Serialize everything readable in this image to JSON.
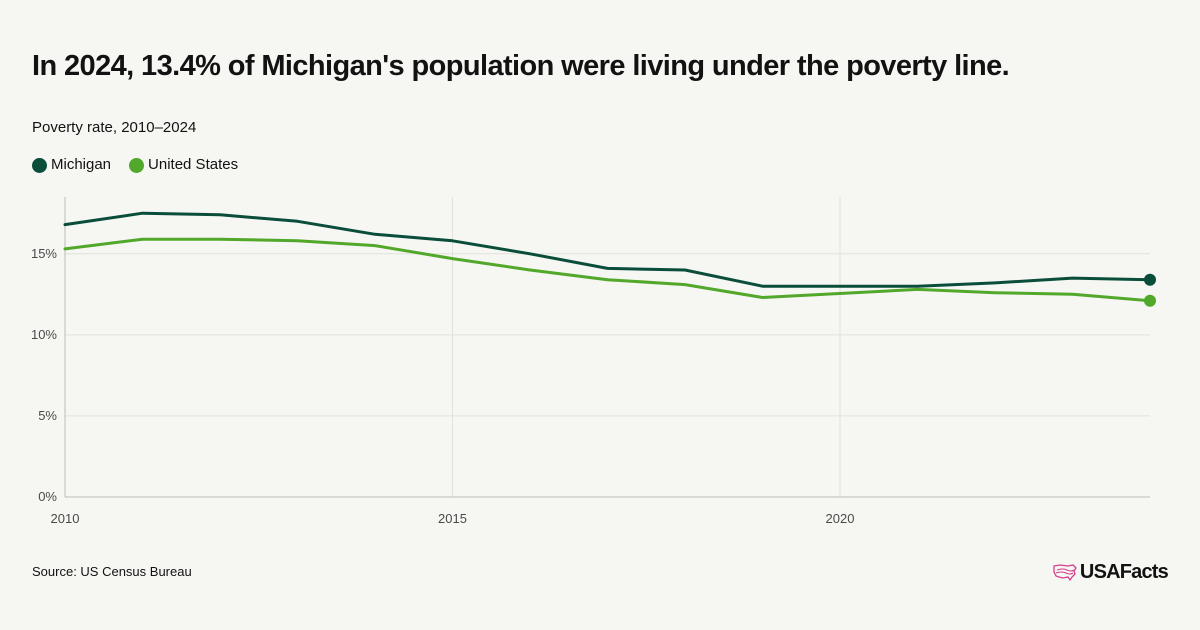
{
  "title": "In 2024, 13.4% of Michigan's population were living under the poverty line.",
  "subtitle": "Poverty rate, 2010–2024",
  "source": "Source: US Census Bureau",
  "brand": "USAFacts",
  "colors": {
    "michigan": "#0a4d3b",
    "united_states": "#52a82a",
    "grid": "#e2e2dc",
    "axis": "#bdbdb5",
    "tick_text": "#4a4a4a",
    "logo_icon": "#d43f8d"
  },
  "chart_data": {
    "type": "line",
    "title": "In 2024, 13.4% of Michigan's population were living under the poverty line.",
    "subtitle": "Poverty rate, 2010–2024",
    "xlabel": "",
    "ylabel": "",
    "x": [
      2010,
      2011,
      2012,
      2013,
      2014,
      2015,
      2016,
      2017,
      2018,
      2019,
      2021,
      2022,
      2023,
      2024
    ],
    "xlim": [
      2010,
      2024
    ],
    "ylim": [
      0,
      18.5
    ],
    "x_ticks": [
      {
        "value": 2010,
        "label": "2010"
      },
      {
        "value": 2015,
        "label": "2015"
      },
      {
        "value": 2020,
        "label": "2020"
      }
    ],
    "y_ticks": [
      {
        "value": 0,
        "label": "0%"
      },
      {
        "value": 5,
        "label": "5%"
      },
      {
        "value": 10,
        "label": "10%"
      },
      {
        "value": 15,
        "label": "15%"
      }
    ],
    "grid": true,
    "legend_position": "top-left",
    "series": [
      {
        "name": "Michigan",
        "color": "#0a4d3b",
        "values": [
          16.8,
          17.5,
          17.4,
          17.0,
          16.2,
          15.8,
          15.0,
          14.1,
          14.0,
          13.0,
          13.0,
          13.2,
          13.5,
          13.4
        ],
        "end_marker": true
      },
      {
        "name": "United States",
        "color": "#52a82a",
        "values": [
          15.3,
          15.9,
          15.9,
          15.8,
          15.5,
          14.7,
          14.0,
          13.4,
          13.1,
          12.3,
          12.8,
          12.6,
          12.5,
          12.1
        ],
        "end_marker": true
      }
    ]
  }
}
